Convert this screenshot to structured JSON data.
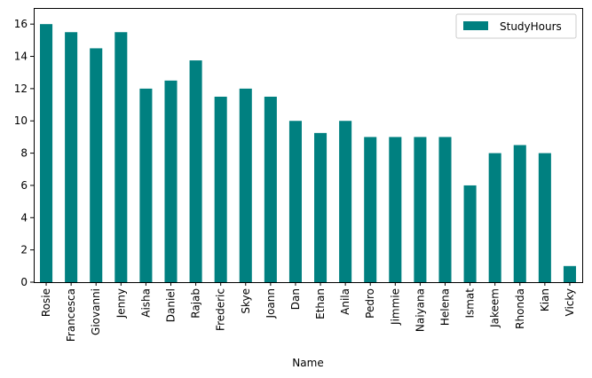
{
  "chart_data": {
    "type": "bar",
    "xlabel": "Name",
    "ylabel": "",
    "ylim": [
      0,
      17
    ],
    "yticks": [
      0,
      2,
      4,
      6,
      8,
      10,
      12,
      14,
      16
    ],
    "grid": false,
    "legend_position": "top-right",
    "bar_color": "#008080",
    "categories": [
      "Rosie",
      "Francesca",
      "Giovanni",
      "Jenny",
      "Aisha",
      "Daniel",
      "Rajab",
      "Frederic",
      "Skye",
      "Joann",
      "Dan",
      "Ethan",
      "Anila",
      "Pedro",
      "Jimmie",
      "Naiyana",
      "Helena",
      "Ismat",
      "Jakeem",
      "Rhonda",
      "Kian",
      "Vicky"
    ],
    "series": [
      {
        "name": "StudyHours",
        "values": [
          16,
          15.5,
          14.5,
          15.5,
          12,
          12.5,
          13.75,
          11.5,
          12,
          11.5,
          10,
          9.25,
          10,
          9,
          9,
          9,
          9,
          6,
          8,
          8.5,
          8,
          1
        ]
      }
    ]
  }
}
